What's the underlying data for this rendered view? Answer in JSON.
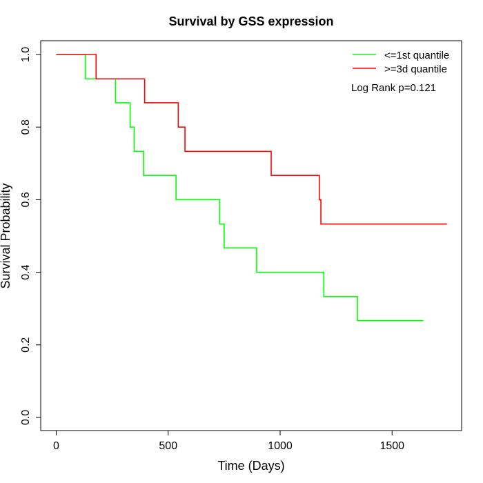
{
  "chart_data": {
    "type": "line",
    "title": "Survival by GSS expression",
    "xlabel": "Time (Days)",
    "ylabel": "Survival Probability",
    "xlim": [
      0,
      1750
    ],
    "ylim": [
      0,
      1
    ],
    "x_ticks": [
      0,
      500,
      1000,
      1500
    ],
    "y_ticks": [
      0.0,
      0.2,
      0.4,
      0.6,
      0.8,
      1.0
    ],
    "x_tick_labels": [
      "0",
      "500",
      "1000",
      "1500"
    ],
    "y_tick_labels": [
      "0.0",
      "0.2",
      "0.4",
      "0.6",
      "0.8",
      "1.0"
    ],
    "grid": false,
    "legend_position": "top-right",
    "annotation": "Log Rank p=0.121",
    "series": [
      {
        "name": "<=1st quantile",
        "color": "#00ff00",
        "step": true,
        "x": [
          0,
          130,
          265,
          330,
          348,
          390,
          535,
          730,
          750,
          895,
          1195,
          1345,
          1640
        ],
        "y": [
          1.0,
          0.933,
          0.867,
          0.8,
          0.733,
          0.667,
          0.6,
          0.533,
          0.467,
          0.4,
          0.333,
          0.267,
          0.267
        ]
      },
      {
        "name": ">=3d quantile",
        "color": "#ff0000",
        "step": true,
        "x": [
          0,
          178,
          395,
          545,
          575,
          960,
          1175,
          1182,
          1745
        ],
        "y": [
          1.0,
          0.933,
          0.867,
          0.8,
          0.733,
          0.667,
          0.6,
          0.533,
          0.533
        ]
      }
    ]
  }
}
